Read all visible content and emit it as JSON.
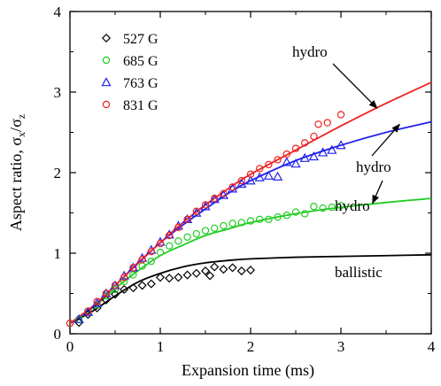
{
  "chart_data": {
    "type": "scatter",
    "xlabel": "Expansion time (ms)",
    "ylabel_main": "Aspect ratio, σ",
    "ylabel_sub1": "x",
    "ylabel_sep": "/σ",
    "ylabel_sub2": "z",
    "xlim": [
      0,
      4
    ],
    "ylim": [
      0,
      4
    ],
    "x_ticks": [
      0,
      1,
      2,
      3,
      4
    ],
    "y_ticks": [
      0,
      1,
      2,
      3,
      4
    ],
    "x_tick_labels": [
      "0",
      "1",
      "2",
      "3",
      "4"
    ],
    "y_tick_labels": [
      "0",
      "1",
      "2",
      "3",
      "4"
    ],
    "grid": false,
    "legend": {
      "placement": "top-left"
    },
    "series": [
      {
        "name": "527 G",
        "marker": "diamond",
        "color": "#000000",
        "points": [
          [
            0.1,
            0.14
          ],
          [
            0.2,
            0.24
          ],
          [
            0.3,
            0.32
          ],
          [
            0.4,
            0.42
          ],
          [
            0.5,
            0.49
          ],
          [
            0.6,
            0.55
          ],
          [
            0.7,
            0.57
          ],
          [
            0.8,
            0.6
          ],
          [
            0.9,
            0.62
          ],
          [
            1.0,
            0.7
          ],
          [
            1.1,
            0.69
          ],
          [
            1.2,
            0.7
          ],
          [
            1.3,
            0.73
          ],
          [
            1.4,
            0.75
          ],
          [
            1.5,
            0.78
          ],
          [
            1.55,
            0.72
          ],
          [
            1.6,
            0.83
          ],
          [
            1.7,
            0.8
          ],
          [
            1.8,
            0.82
          ],
          [
            1.9,
            0.78
          ],
          [
            2.0,
            0.79
          ]
        ]
      },
      {
        "name": "685 G",
        "marker": "circle",
        "color": "#22cc22",
        "points": [
          [
            0.0,
            0.13
          ],
          [
            0.1,
            0.18
          ],
          [
            0.2,
            0.28
          ],
          [
            0.3,
            0.36
          ],
          [
            0.4,
            0.47
          ],
          [
            0.5,
            0.55
          ],
          [
            0.6,
            0.65
          ],
          [
            0.7,
            0.73
          ],
          [
            0.8,
            0.84
          ],
          [
            0.9,
            0.9
          ],
          [
            1.0,
            1.01
          ],
          [
            1.1,
            1.09
          ],
          [
            1.2,
            1.15
          ],
          [
            1.3,
            1.2
          ],
          [
            1.4,
            1.24
          ],
          [
            1.5,
            1.28
          ],
          [
            1.6,
            1.31
          ],
          [
            1.7,
            1.34
          ],
          [
            1.8,
            1.37
          ],
          [
            1.9,
            1.38
          ],
          [
            2.0,
            1.4
          ],
          [
            2.1,
            1.42
          ],
          [
            2.2,
            1.42
          ],
          [
            2.3,
            1.45
          ],
          [
            2.4,
            1.47
          ],
          [
            2.5,
            1.51
          ],
          [
            2.6,
            1.49
          ],
          [
            2.7,
            1.58
          ],
          [
            2.8,
            1.56
          ],
          [
            2.9,
            1.57
          ],
          [
            3.0,
            1.59
          ]
        ]
      },
      {
        "name": "763 G",
        "marker": "triangle",
        "color": "#2222ee",
        "points": [
          [
            0.1,
            0.18
          ],
          [
            0.2,
            0.27
          ],
          [
            0.3,
            0.38
          ],
          [
            0.4,
            0.5
          ],
          [
            0.5,
            0.6
          ],
          [
            0.6,
            0.72
          ],
          [
            0.7,
            0.82
          ],
          [
            0.8,
            0.94
          ],
          [
            0.9,
            1.04
          ],
          [
            1.0,
            1.14
          ],
          [
            1.1,
            1.23
          ],
          [
            1.2,
            1.34
          ],
          [
            1.3,
            1.42
          ],
          [
            1.4,
            1.5
          ],
          [
            1.5,
            1.58
          ],
          [
            1.6,
            1.67
          ],
          [
            1.7,
            1.72
          ],
          [
            1.8,
            1.8
          ],
          [
            1.9,
            1.86
          ],
          [
            2.0,
            1.9
          ],
          [
            2.1,
            1.94
          ],
          [
            2.2,
            1.96
          ],
          [
            2.3,
            1.95
          ],
          [
            2.4,
            2.13
          ],
          [
            2.5,
            2.11
          ],
          [
            2.6,
            2.18
          ],
          [
            2.7,
            2.2
          ],
          [
            2.8,
            2.25
          ],
          [
            2.9,
            2.28
          ],
          [
            3.0,
            2.34
          ]
        ]
      },
      {
        "name": "831 G",
        "marker": "circle",
        "color": "#ee2222",
        "points": [
          [
            0.0,
            0.13
          ],
          [
            0.2,
            0.28
          ],
          [
            0.3,
            0.4
          ],
          [
            0.4,
            0.5
          ],
          [
            0.5,
            0.6
          ],
          [
            0.6,
            0.7
          ],
          [
            0.7,
            0.82
          ],
          [
            0.8,
            0.92
          ],
          [
            0.9,
            1.02
          ],
          [
            1.0,
            1.12
          ],
          [
            1.1,
            1.22
          ],
          [
            1.2,
            1.32
          ],
          [
            1.3,
            1.42
          ],
          [
            1.4,
            1.52
          ],
          [
            1.5,
            1.6
          ],
          [
            1.6,
            1.68
          ],
          [
            1.7,
            1.74
          ],
          [
            1.8,
            1.82
          ],
          [
            1.9,
            1.9
          ],
          [
            2.0,
            1.98
          ],
          [
            2.1,
            2.05
          ],
          [
            2.2,
            2.1
          ],
          [
            2.3,
            2.16
          ],
          [
            2.4,
            2.23
          ],
          [
            2.5,
            2.3
          ],
          [
            2.6,
            2.37
          ],
          [
            2.7,
            2.45
          ],
          [
            2.75,
            2.6
          ],
          [
            2.85,
            2.62
          ],
          [
            3.0,
            2.72
          ]
        ]
      }
    ],
    "curves": [
      {
        "label": "ballistic",
        "color": "#000000",
        "x": [
          0,
          0.25,
          0.5,
          0.75,
          1,
          1.25,
          1.5,
          1.75,
          2,
          2.5,
          3,
          3.5,
          4
        ],
        "y": [
          0.13,
          0.28,
          0.47,
          0.64,
          0.75,
          0.83,
          0.88,
          0.91,
          0.93,
          0.95,
          0.96,
          0.97,
          0.98
        ]
      },
      {
        "label": "hydro",
        "color": "#22cc22",
        "x": [
          0,
          0.25,
          0.5,
          0.75,
          1,
          1.25,
          1.5,
          1.75,
          2,
          2.5,
          3,
          3.5,
          4
        ],
        "y": [
          0.13,
          0.32,
          0.56,
          0.78,
          0.97,
          1.1,
          1.22,
          1.3,
          1.38,
          1.49,
          1.57,
          1.63,
          1.68
        ]
      },
      {
        "label": "hydro",
        "color": "#2222ee",
        "x": [
          0,
          0.25,
          0.5,
          0.75,
          1,
          1.25,
          1.5,
          1.75,
          2,
          2.5,
          3,
          3.5,
          4
        ],
        "y": [
          0.13,
          0.33,
          0.6,
          0.87,
          1.13,
          1.35,
          1.55,
          1.74,
          1.9,
          2.15,
          2.34,
          2.5,
          2.63
        ]
      },
      {
        "label": "hydro",
        "color": "#ee2222",
        "x": [
          0,
          0.25,
          0.5,
          0.75,
          1,
          1.25,
          1.5,
          1.75,
          2,
          2.5,
          3,
          3.5,
          4
        ],
        "y": [
          0.13,
          0.34,
          0.6,
          0.88,
          1.13,
          1.38,
          1.6,
          1.8,
          1.98,
          2.28,
          2.58,
          2.86,
          3.12
        ]
      }
    ],
    "annotations": [
      {
        "text": "hydro",
        "arrow_target": [
          3.4,
          2.8
        ]
      },
      {
        "text": "hydro",
        "arrow_target": [
          3.65,
          2.6
        ]
      },
      {
        "text": "hydro",
        "arrow_target": [
          3.35,
          1.62
        ]
      },
      {
        "text": "ballistic"
      }
    ]
  }
}
